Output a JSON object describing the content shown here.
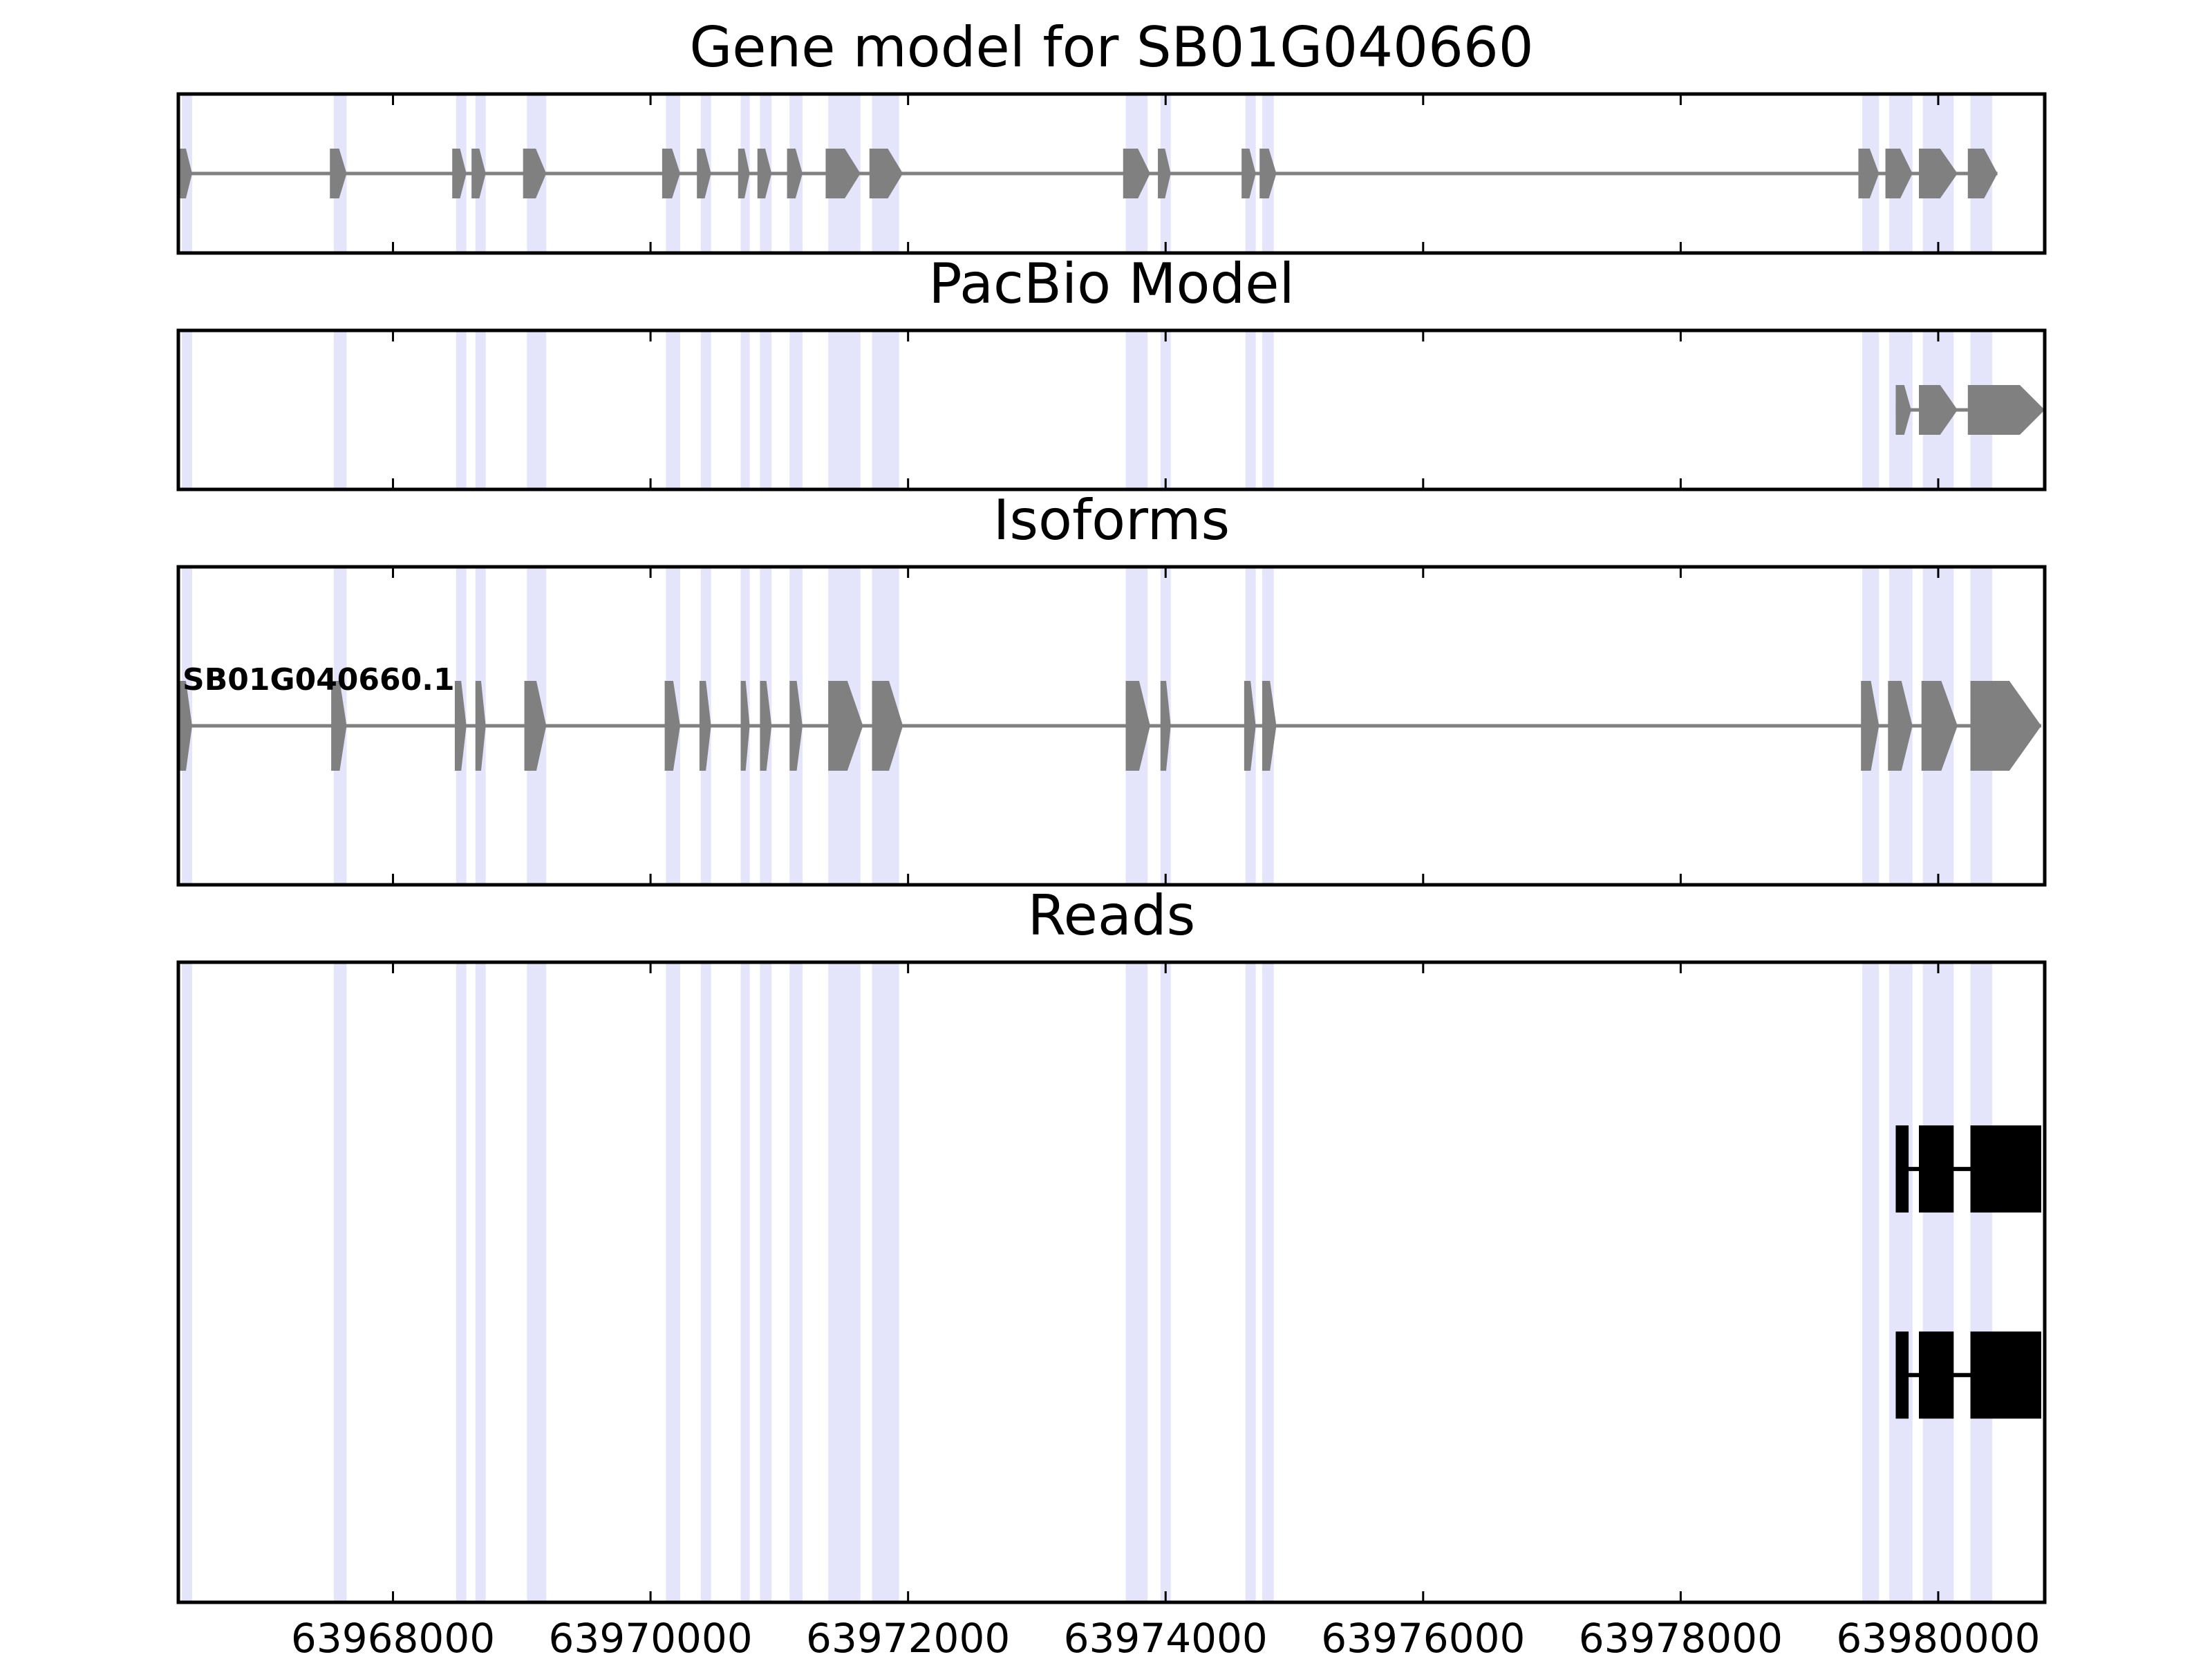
{
  "chart_data": {
    "type": "gene-track",
    "xlim": [
      63966333,
      63980827
    ],
    "x_ticks": [
      63968000,
      63970000,
      63972000,
      63974000,
      63976000,
      63978000,
      63980000
    ],
    "x_tick_labels": [
      "63968000",
      "63970000",
      "63972000",
      "63974000",
      "63976000",
      "63978000",
      "63980000"
    ],
    "highlight_regions": [
      [
        63966360,
        63966440
      ],
      [
        63967540,
        63967640
      ],
      [
        63968490,
        63968570
      ],
      [
        63968640,
        63968720
      ],
      [
        63969040,
        63969190
      ],
      [
        63970120,
        63970230
      ],
      [
        63970390,
        63970470
      ],
      [
        63970700,
        63970770
      ],
      [
        63970850,
        63970940
      ],
      [
        63971080,
        63971180
      ],
      [
        63971380,
        63971630
      ],
      [
        63971720,
        63971930
      ],
      [
        63973690,
        63973860
      ],
      [
        63973960,
        63974040
      ],
      [
        63974620,
        63974700
      ],
      [
        63974750,
        63974840
      ],
      [
        63979410,
        63979540
      ],
      [
        63979620,
        63979800
      ],
      [
        63979880,
        63980120
      ],
      [
        63980250,
        63980420
      ]
    ],
    "panels": [
      {
        "title": "Gene model for SB01G040660",
        "features": [
          {
            "label": "",
            "color": "#808080",
            "strand": "+",
            "exons": [
              [
                63966333,
                63966440
              ],
              [
                63967510,
                63967640
              ],
              [
                63968460,
                63968570
              ],
              [
                63968610,
                63968720
              ],
              [
                63969010,
                63969190
              ],
              [
                63970090,
                63970230
              ],
              [
                63970360,
                63970470
              ],
              [
                63970680,
                63970770
              ],
              [
                63970830,
                63970940
              ],
              [
                63971060,
                63971180
              ],
              [
                63971360,
                63971630
              ],
              [
                63971700,
                63971960
              ],
              [
                63973670,
                63973880
              ],
              [
                63973940,
                63974040
              ],
              [
                63974590,
                63974700
              ],
              [
                63974730,
                63974860
              ],
              [
                63979380,
                63979540
              ],
              [
                63979590,
                63979800
              ],
              [
                63979850,
                63980150
              ],
              [
                63980230,
                63980460
              ]
            ]
          }
        ]
      },
      {
        "title": "PacBio Model",
        "features": [
          {
            "label": "",
            "color": "#808080",
            "strand": "+",
            "exons": [
              [
                63979670,
                63979790
              ],
              [
                63979850,
                63980150
              ],
              [
                63980230,
                63980827
              ]
            ]
          }
        ]
      },
      {
        "title": "Isoforms",
        "features": [
          {
            "label": "SB01G040660.1",
            "color": "#808080",
            "strand": "+",
            "exons": [
              [
                63966333,
                63966440
              ],
              [
                63967520,
                63967640
              ],
              [
                63968480,
                63968570
              ],
              [
                63968640,
                63968720
              ],
              [
                63969020,
                63969190
              ],
              [
                63970110,
                63970230
              ],
              [
                63970380,
                63970470
              ],
              [
                63970700,
                63970770
              ],
              [
                63970850,
                63970940
              ],
              [
                63971080,
                63971180
              ],
              [
                63971380,
                63971650
              ],
              [
                63971720,
                63971960
              ],
              [
                63973690,
                63973880
              ],
              [
                63973960,
                63974040
              ],
              [
                63974610,
                63974700
              ],
              [
                63974750,
                63974860
              ],
              [
                63979400,
                63979540
              ],
              [
                63979610,
                63979800
              ],
              [
                63979870,
                63980150
              ],
              [
                63980250,
                63980800
              ]
            ]
          }
        ]
      },
      {
        "title": "Reads",
        "features": [
          {
            "label": "",
            "color": "#000000",
            "strand": "",
            "exons": [
              [
                63979670,
                63979770
              ],
              [
                63979850,
                63980120
              ],
              [
                63980250,
                63980800
              ]
            ]
          },
          {
            "label": "",
            "color": "#000000",
            "strand": "",
            "exons": [
              [
                63979670,
                63979770
              ],
              [
                63979850,
                63980120
              ],
              [
                63980250,
                63980800
              ]
            ]
          }
        ]
      }
    ],
    "colors": {
      "highlight": "#e4e4fa",
      "intron": "#808080",
      "axis": "#000000"
    },
    "grid": false,
    "legend": "none"
  }
}
